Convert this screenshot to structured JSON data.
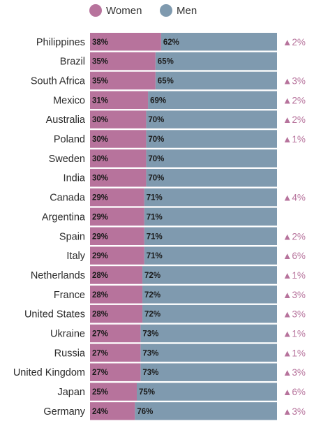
{
  "colors": {
    "women": "#b7739c",
    "men": "#7f9aaf",
    "change": "#b7739c"
  },
  "legend": {
    "women_label": "Women",
    "men_label": "Men"
  },
  "chart_data": {
    "type": "bar",
    "stacked": true,
    "orientation": "horizontal",
    "title": "",
    "xlabel": "",
    "ylabel": "",
    "xlim": [
      0,
      100
    ],
    "legend_position": "top",
    "categories": [
      "Philippines",
      "Brazil",
      "South Africa",
      "Mexico",
      "Australia",
      "Poland",
      "Sweden",
      "India",
      "Canada",
      "Argentina",
      "Spain",
      "Italy",
      "Netherlands",
      "France",
      "United States",
      "Ukraine",
      "Russia",
      "United Kingdom",
      "Japan",
      "Germany"
    ],
    "series": [
      {
        "name": "Women",
        "values": [
          38,
          35,
          35,
          31,
          30,
          30,
          30,
          30,
          29,
          29,
          29,
          29,
          28,
          28,
          28,
          27,
          27,
          27,
          25,
          24
        ],
        "labels": [
          "38%",
          "35%",
          "35%",
          "31%",
          "30%",
          "30%",
          "30%",
          "30%",
          "29%",
          "29%",
          "29%",
          "29%",
          "28%",
          "28%",
          "28%",
          "27%",
          "27%",
          "27%",
          "25%",
          "24%"
        ]
      },
      {
        "name": "Men",
        "values": [
          62,
          65,
          65,
          69,
          70,
          70,
          70,
          70,
          71,
          71,
          71,
          71,
          72,
          72,
          72,
          73,
          73,
          73,
          75,
          76
        ],
        "labels": [
          "62%",
          "65%",
          "65%",
          "69%",
          "70%",
          "70%",
          "70%",
          "70%",
          "71%",
          "71%",
          "71%",
          "71%",
          "72%",
          "72%",
          "72%",
          "73%",
          "73%",
          "73%",
          "75%",
          "76%"
        ]
      }
    ],
    "change": [
      "▲2%",
      "",
      "▲3%",
      "▲2%",
      "▲2%",
      "▲1%",
      "",
      "",
      "▲4%",
      "",
      "▲2%",
      "▲6%",
      "▲1%",
      "▲3%",
      "▲3%",
      "▲1%",
      "▲1%",
      "▲3%",
      "▲6%",
      "▲3%"
    ]
  }
}
